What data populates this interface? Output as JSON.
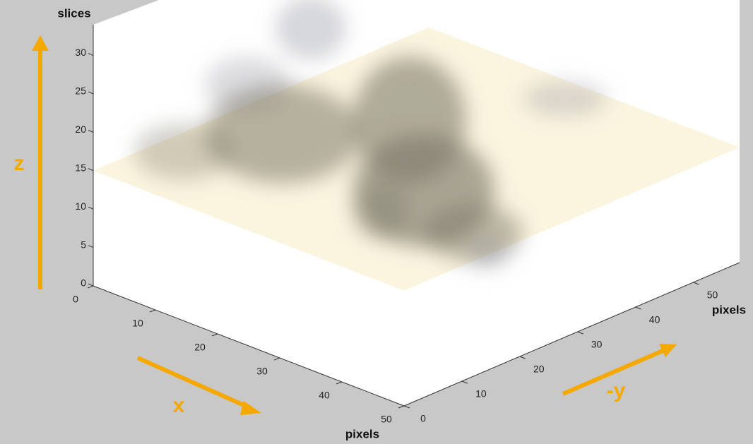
{
  "chart_data": {
    "type": "volume",
    "xlabel": "pixels",
    "ylabel": "pixels",
    "zlabel": "slices",
    "xlim": [
      0,
      50
    ],
    "ylim": [
      0,
      58
    ],
    "zlim": [
      0,
      34
    ],
    "xticks": [
      0,
      10,
      20,
      30,
      40,
      50
    ],
    "yticks": [
      0,
      10,
      20,
      30,
      40,
      50
    ],
    "zticks": [
      0,
      5,
      10,
      15,
      20,
      25,
      30
    ],
    "plane_z": 15,
    "plane_color": "#fbf3dc",
    "annotations": [
      "z",
      "x",
      "-y"
    ],
    "annotation_color": "#f5a800"
  }
}
